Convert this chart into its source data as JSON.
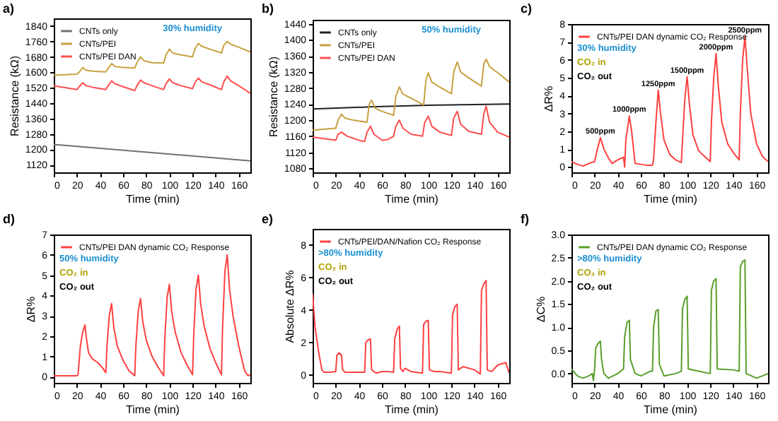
{
  "chart_data": [
    {
      "type": "line",
      "title": "a)",
      "xlabel": "Time (min)",
      "ylabel": "Resistance (kΩ)",
      "xlim": [
        0,
        170
      ],
      "xticks": [
        0,
        20,
        40,
        60,
        80,
        100,
        120,
        140,
        160
      ],
      "ylim": [
        1080,
        1880
      ],
      "yticks": [
        1120,
        1200,
        1280,
        1360,
        1440,
        1520,
        1600,
        1680,
        1760,
        1840
      ],
      "legend": "top left",
      "annotations": [
        "30% humidity"
      ],
      "series": [
        {
          "name": "CNTs only",
          "color": "#707070",
          "x": [
            0,
            170
          ],
          "values": [
            1225,
            1140
          ]
        },
        {
          "name": "CNTs/PEI",
          "color": "#c8a040",
          "x": [
            0,
            20,
            22,
            25,
            28,
            35,
            45,
            47,
            50,
            53,
            60,
            70,
            72,
            75,
            78,
            85,
            95,
            97,
            100,
            103,
            110,
            120,
            122,
            125,
            128,
            135,
            145,
            147,
            150,
            153,
            160,
            170
          ],
          "values": [
            1585,
            1590,
            1600,
            1625,
            1610,
            1605,
            1602,
            1620,
            1645,
            1630,
            1625,
            1622,
            1650,
            1680,
            1660,
            1650,
            1648,
            1690,
            1720,
            1700,
            1690,
            1680,
            1720,
            1750,
            1735,
            1720,
            1700,
            1740,
            1760,
            1745,
            1730,
            1705
          ]
        },
        {
          "name": "CNTs/PEI DAN",
          "color": "#ff4d4d",
          "x": [
            0,
            20,
            22,
            25,
            28,
            35,
            45,
            47,
            50,
            53,
            60,
            70,
            72,
            75,
            78,
            85,
            95,
            97,
            100,
            103,
            110,
            120,
            122,
            125,
            128,
            135,
            145,
            147,
            150,
            153,
            160,
            170
          ],
          "values": [
            1530,
            1510,
            1525,
            1545,
            1530,
            1520,
            1510,
            1530,
            1555,
            1540,
            1525,
            1505,
            1530,
            1560,
            1545,
            1530,
            1510,
            1540,
            1565,
            1545,
            1530,
            1515,
            1545,
            1570,
            1550,
            1535,
            1510,
            1550,
            1580,
            1555,
            1530,
            1490
          ]
        }
      ]
    },
    {
      "type": "line",
      "title": "b)",
      "xlabel": "Time (min)",
      "ylabel": "Resistance (kΩ)",
      "xlim": [
        0,
        170
      ],
      "xticks": [
        0,
        20,
        40,
        60,
        80,
        100,
        120,
        140,
        160
      ],
      "ylim": [
        1070,
        1450
      ],
      "yticks": [
        1080,
        1120,
        1160,
        1200,
        1240,
        1280,
        1320,
        1360,
        1400,
        1440
      ],
      "legend": "top left",
      "annotations": [
        "50% humidity"
      ],
      "series": [
        {
          "name": "CNTs only",
          "color": "#202020",
          "x": [
            0,
            50,
            100,
            170
          ],
          "values": [
            1228,
            1233,
            1237,
            1240
          ]
        },
        {
          "name": "CNTs/PEI",
          "color": "#c8a040",
          "x": [
            0,
            20,
            22,
            25,
            28,
            35,
            47,
            49,
            51,
            54,
            60,
            70,
            72,
            75,
            78,
            85,
            96,
            98,
            100,
            103,
            110,
            120,
            122,
            125,
            128,
            135,
            146,
            148,
            150,
            153,
            160,
            170
          ],
          "values": [
            1175,
            1180,
            1200,
            1215,
            1205,
            1200,
            1195,
            1240,
            1250,
            1230,
            1222,
            1212,
            1260,
            1283,
            1265,
            1255,
            1238,
            1300,
            1318,
            1295,
            1282,
            1266,
            1320,
            1345,
            1320,
            1305,
            1285,
            1340,
            1352,
            1333,
            1318,
            1295
          ]
        },
        {
          "name": "CNTs/PEI DAN",
          "color": "#ff4d4d",
          "x": [
            0,
            20,
            22,
            25,
            30,
            40,
            45,
            47,
            50,
            53,
            60,
            65,
            70,
            72,
            75,
            78,
            85,
            95,
            97,
            100,
            103,
            110,
            120,
            122,
            125,
            128,
            135,
            146,
            148,
            150,
            153,
            160,
            170
          ],
          "values": [
            1158,
            1150,
            1165,
            1170,
            1160,
            1150,
            1147,
            1170,
            1185,
            1165,
            1150,
            1152,
            1160,
            1185,
            1200,
            1180,
            1165,
            1160,
            1195,
            1210,
            1185,
            1170,
            1162,
            1205,
            1222,
            1190,
            1172,
            1165,
            1215,
            1235,
            1195,
            1170,
            1158
          ]
        }
      ]
    },
    {
      "type": "line",
      "title": "c)",
      "xlabel": "Time (min)",
      "ylabel": "ΔR%",
      "xlim": [
        0,
        170
      ],
      "xticks": [
        0,
        20,
        40,
        60,
        80,
        100,
        120,
        140,
        160
      ],
      "ylim": [
        -0.3,
        8
      ],
      "yticks": [
        0,
        1,
        2,
        3,
        4,
        5,
        6,
        7,
        8
      ],
      "legend": "top left",
      "annotations": [
        "30% humidity",
        "CO₂ in",
        "CO₂ out",
        {
          "text": "500ppm",
          "x": 25,
          "y": 1.65
        },
        {
          "text": "1000ppm",
          "x": 50,
          "y": 2.85
        },
        {
          "text": "1250ppm",
          "x": 75,
          "y": 4.3
        },
        {
          "text": "1500ppm",
          "x": 100,
          "y": 5.05
        },
        {
          "text": "2000ppm",
          "x": 125,
          "y": 6.35
        },
        {
          "text": "2500ppm",
          "x": 150,
          "y": 7.3
        }
      ],
      "series": [
        {
          "name": "CNTs/PEI DAN dynamic CO₂ Response",
          "color": "#ff4040",
          "x": [
            0,
            5,
            10,
            15,
            20,
            22,
            25,
            28,
            32,
            35,
            40,
            45,
            46,
            47,
            50,
            52,
            55,
            60,
            65,
            70,
            71,
            73,
            75,
            77,
            80,
            85,
            90,
            95,
            96,
            98,
            100,
            102,
            105,
            110,
            115,
            120,
            121,
            123,
            125,
            127,
            130,
            135,
            140,
            145,
            146,
            148,
            150,
            152,
            155,
            160,
            165,
            170
          ],
          "values": [
            0.3,
            0.15,
            0.05,
            0.2,
            0.3,
            0.9,
            1.65,
            1.0,
            0.5,
            0.2,
            0.4,
            0.55,
            0.0,
            1.5,
            2.85,
            2.0,
            0.2,
            0.15,
            0.1,
            0.1,
            0.4,
            2.5,
            4.3,
            3.0,
            1.5,
            0.7,
            0.4,
            0.25,
            1.5,
            3.8,
            5.05,
            3.5,
            1.8,
            0.9,
            0.6,
            0.3,
            2.5,
            5.0,
            6.35,
            4.5,
            2.5,
            1.3,
            0.8,
            0.4,
            3.0,
            6.0,
            7.3,
            5.5,
            3.0,
            1.3,
            0.6,
            0.3
          ]
        }
      ]
    },
    {
      "type": "line",
      "title": "d)",
      "xlabel": "Time (min)",
      "ylabel": "ΔR%",
      "xlim": [
        0,
        170
      ],
      "xticks": [
        0,
        20,
        40,
        60,
        80,
        100,
        120,
        140,
        160
      ],
      "ylim": [
        -0.3,
        7
      ],
      "yticks": [
        0,
        1,
        2,
        3,
        4,
        5,
        6,
        7
      ],
      "legend": "top left",
      "annotations": [
        "50% humidity",
        "CO₂ in",
        "CO₂ out"
      ],
      "series": [
        {
          "name": "CNTs/PEI DAN dynamic CO₂ Response",
          "color": "#ff4040",
          "x": [
            0,
            10,
            20,
            21,
            23,
            25,
            27,
            28,
            30,
            33,
            38,
            42,
            45,
            46,
            48,
            50,
            52,
            55,
            60,
            65,
            70,
            71,
            73,
            75,
            77,
            80,
            85,
            90,
            95,
            96,
            98,
            100,
            102,
            105,
            110,
            115,
            120,
            121,
            123,
            125,
            127,
            130,
            135,
            140,
            145,
            146,
            148,
            150,
            152,
            155,
            160,
            165,
            168,
            170
          ],
          "values": [
            0.05,
            0.05,
            0.05,
            0.1,
            1.5,
            2.2,
            2.55,
            2.0,
            1.2,
            0.9,
            0.7,
            0.45,
            0.2,
            1.5,
            3.0,
            3.6,
            2.4,
            1.5,
            0.8,
            0.3,
            0.05,
            1.5,
            3.2,
            3.85,
            2.7,
            1.8,
            1.0,
            0.5,
            0.05,
            1.8,
            3.9,
            4.55,
            3.2,
            2.2,
            1.2,
            0.6,
            0.1,
            2.0,
            4.3,
            5.0,
            3.6,
            2.5,
            1.4,
            0.7,
            0.1,
            2.5,
            5.2,
            6.0,
            4.3,
            3.0,
            1.5,
            0.3,
            0.05,
            0.1
          ]
        }
      ]
    },
    {
      "type": "line",
      "title": "e)",
      "xlabel": "Time (min)",
      "ylabel": "Absolute ΔR%",
      "xlim": [
        0,
        170
      ],
      "xticks": [
        0,
        20,
        40,
        60,
        80,
        100,
        120,
        140,
        160
      ],
      "ylim": [
        -0.5,
        9
      ],
      "yticks": [
        0,
        2,
        4,
        6,
        8
      ],
      "legend": "top left",
      "annotations": [
        ">80% humidity",
        "CO₂ in",
        "CO₂ out"
      ],
      "series": [
        {
          "name": "CNTs/PEI/DAN/Nafion CO₂ Response",
          "color": "#ff4040",
          "x": [
            0,
            2,
            5,
            8,
            10,
            15,
            20,
            21,
            23,
            25,
            26,
            28,
            35,
            45,
            46,
            48,
            50,
            51,
            55,
            60,
            65,
            70,
            71,
            73,
            75,
            76,
            78,
            80,
            85,
            95,
            96,
            98,
            100,
            101,
            105,
            110,
            120,
            121,
            123,
            125,
            126,
            130,
            140,
            145,
            146,
            148,
            150,
            151,
            155,
            160,
            167,
            170
          ],
          "values": [
            5.0,
            3.0,
            1.5,
            0.3,
            0.15,
            0.15,
            0.2,
            1.2,
            1.35,
            1.2,
            0.3,
            0.15,
            0.15,
            0.15,
            2.0,
            2.15,
            2.2,
            0.3,
            0.1,
            0.2,
            0.2,
            0.15,
            2.2,
            2.8,
            3.0,
            0.4,
            0.2,
            0.4,
            0.2,
            0.1,
            3.1,
            3.3,
            3.35,
            0.3,
            0.2,
            0.2,
            0.1,
            3.7,
            4.2,
            4.35,
            0.3,
            0.5,
            0.3,
            0.05,
            5.2,
            5.6,
            5.8,
            0.3,
            0.2,
            0.6,
            0.75,
            0.1
          ]
        }
      ]
    },
    {
      "type": "line",
      "title": "f)",
      "xlabel": "Time (min)",
      "ylabel": "ΔC%",
      "xlim": [
        0,
        170
      ],
      "xticks": [
        0,
        20,
        40,
        60,
        80,
        100,
        120,
        140,
        160
      ],
      "ylim": [
        -0.2,
        3
      ],
      "yticks": [
        {
          "value": 0,
          "label": "0.0"
        },
        0.5,
        {
          "value": 1,
          "label": "1.0"
        },
        1.5,
        {
          "value": 2,
          "label": "2.0"
        },
        2.5,
        {
          "value": 3,
          "label": "3.0"
        }
      ],
      "legend": "top left",
      "annotations": [
        ">80% humidity",
        "CO₂ in",
        "CO₂ out"
      ],
      "series": [
        {
          "name": "CNTs/PEI DAN dynamic CO₂ Response",
          "color": "#5a9e2a",
          "x": [
            0,
            5,
            10,
            15,
            18,
            19,
            20,
            21,
            23,
            25,
            26,
            28,
            32,
            40,
            45,
            46,
            48,
            50,
            51,
            55,
            60,
            68,
            70,
            71,
            73,
            75,
            76,
            80,
            90,
            95,
            96,
            98,
            100,
            101,
            110,
            120,
            121,
            123,
            125,
            126,
            140,
            145,
            146,
            148,
            150,
            151,
            160,
            165,
            170
          ],
          "values": [
            0.1,
            -0.05,
            -0.1,
            -0.05,
            0.0,
            -0.15,
            0.1,
            0.55,
            0.65,
            0.7,
            0.3,
            0.0,
            -0.1,
            0.0,
            0.1,
            0.8,
            1.1,
            1.15,
            0.3,
            0.0,
            -0.05,
            0.05,
            0.05,
            1.0,
            1.35,
            1.38,
            0.2,
            -0.05,
            0.0,
            0.05,
            1.4,
            1.6,
            1.67,
            0.1,
            0.05,
            0.0,
            1.8,
            2.0,
            2.05,
            0.1,
            0.08,
            0.05,
            2.3,
            2.42,
            2.45,
            0.0,
            -0.1,
            -0.05,
            0.0
          ]
        }
      ]
    }
  ]
}
